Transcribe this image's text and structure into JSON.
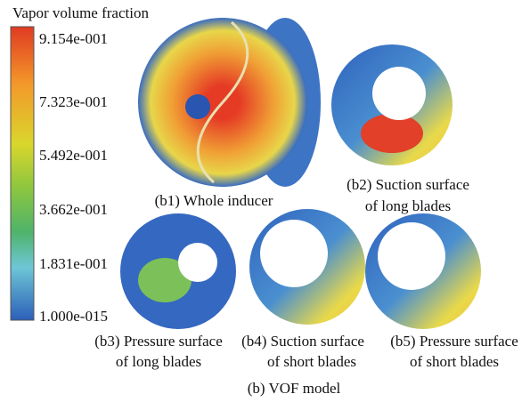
{
  "colorbar": {
    "title": "Vapor volume fraction",
    "tick_labels": [
      "9.154e-001",
      "7.323e-001",
      "5.492e-001",
      "3.662e-001",
      "1.831e-001",
      "1.000e-015"
    ]
  },
  "panels": [
    {
      "lines": [
        "(b1) Whole inducer"
      ]
    },
    {
      "lines": [
        "(b2) Suction surface",
        "of long blades"
      ]
    },
    {
      "lines": [
        "(b3) Pressure surface",
        "of long blades"
      ]
    },
    {
      "lines": [
        "(b4) Suction surface",
        "of short blades"
      ]
    },
    {
      "lines": [
        "(b5) Pressure surface",
        "of short blades"
      ]
    }
  ],
  "caption": "(b) VOF model"
}
